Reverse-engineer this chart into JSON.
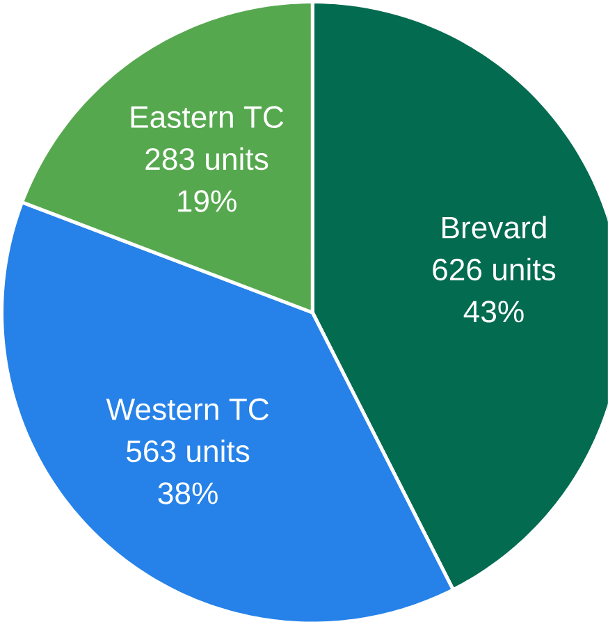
{
  "chart_data": {
    "type": "pie",
    "categories": [
      "Brevard",
      "Western TC",
      "Eastern TC"
    ],
    "values": [
      626,
      563,
      283
    ],
    "value_labels": [
      "626 units",
      "563 units",
      "283 units"
    ],
    "annotations": [
      "43%",
      "38%",
      "19%"
    ],
    "colors": [
      "#036b50",
      "#2682e8",
      "#56a84f"
    ]
  }
}
